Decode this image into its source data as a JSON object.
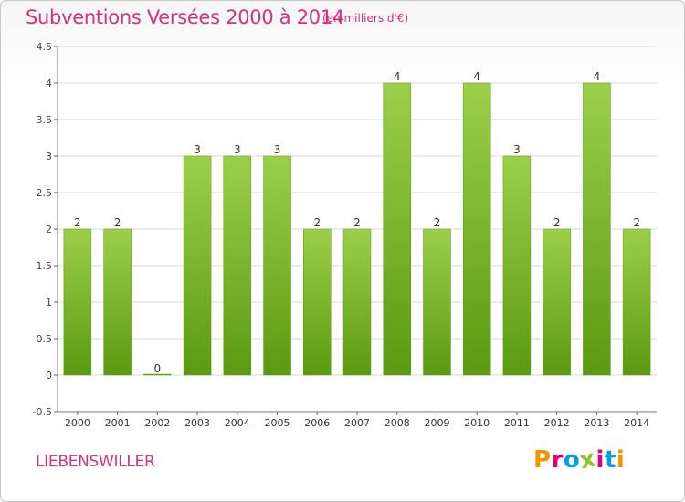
{
  "header": {
    "title": "Subventions Versées 2000 à 2014",
    "unit": "(en milliers d'€)"
  },
  "footer": {
    "commune": "LIEBENSWILLER",
    "brand_letters": [
      "P",
      "r",
      "o",
      "x",
      "i",
      "t",
      "i"
    ],
    "brand_colors": [
      "#f29400",
      "#e2007a",
      "#009fe3",
      "#95c11f",
      "#e2007a",
      "#009fe3",
      "#f29400"
    ]
  },
  "colors": {
    "bar_top": "#9ccf4a",
    "bar_bottom": "#5a9a10",
    "accent": "#d6307a",
    "grid": "#d9d9d9"
  },
  "chart_data": {
    "type": "bar",
    "title": "Subventions Versées 2000 à 2014",
    "subtitle": "(en milliers d'€)",
    "categories": [
      "2000",
      "2001",
      "2002",
      "2003",
      "2004",
      "2005",
      "2006",
      "2007",
      "2008",
      "2009",
      "2010",
      "2011",
      "2012",
      "2013",
      "2014"
    ],
    "values": [
      2,
      2,
      0,
      3,
      3,
      3,
      2,
      2,
      4,
      2,
      4,
      3,
      2,
      4,
      2
    ],
    "data_labels": [
      "2",
      "2",
      "0",
      "3",
      "3",
      "3",
      "2",
      "2",
      "4",
      "2",
      "4",
      "3",
      "2",
      "4",
      "2"
    ],
    "yticks": [
      "-0.5",
      "0",
      "0.5",
      "1",
      "1.5",
      "2",
      "2.5",
      "3",
      "3.5",
      "4",
      "4.5"
    ],
    "ylim": [
      -0.5,
      4.5
    ],
    "grid": true,
    "legend": "none"
  }
}
